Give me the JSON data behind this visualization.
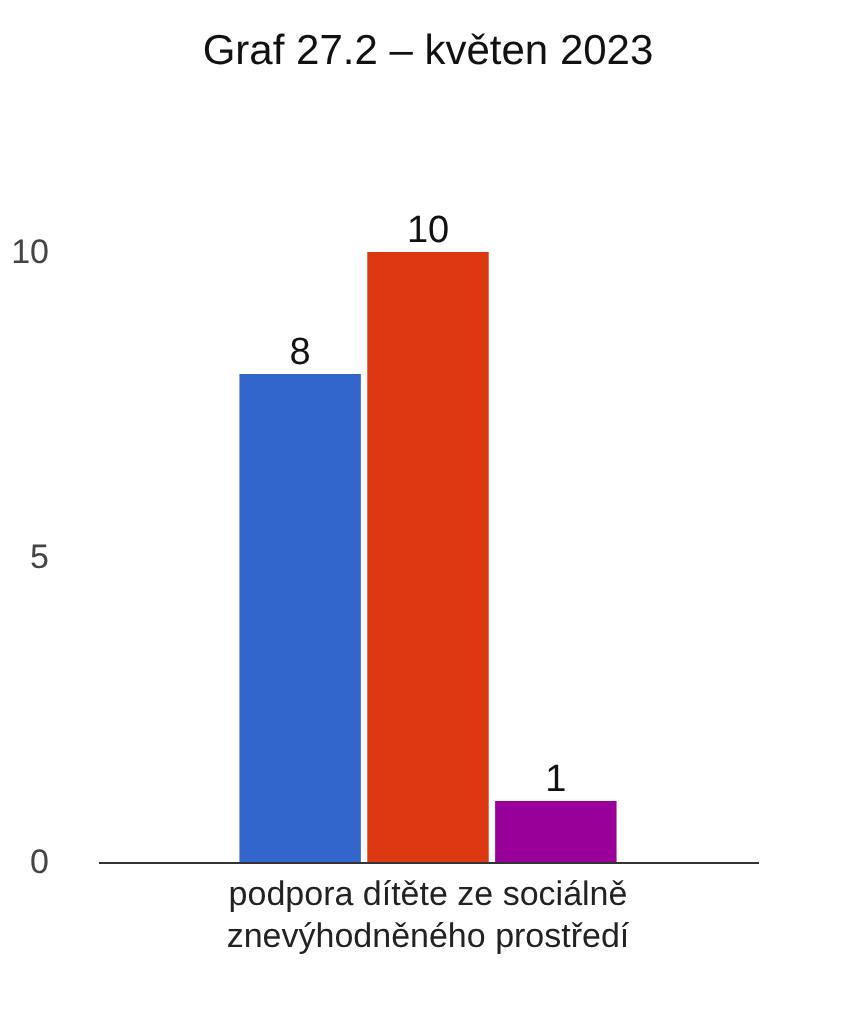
{
  "chart_data": {
    "type": "bar",
    "title": "Graf 27.2 – květen 2023",
    "categories": [
      "podpora dítěte ze sociálně znevýhodněného prostředí"
    ],
    "series": [
      {
        "color": "#3366cc",
        "values": [
          8
        ]
      },
      {
        "color": "#dc3912",
        "values": [
          10
        ]
      },
      {
        "color": "#990099",
        "values": [
          1
        ]
      }
    ],
    "ylim": [
      0,
      10
    ],
    "yticks": [
      0,
      5,
      10
    ],
    "grid": false,
    "legend": false,
    "data_labels": true
  }
}
